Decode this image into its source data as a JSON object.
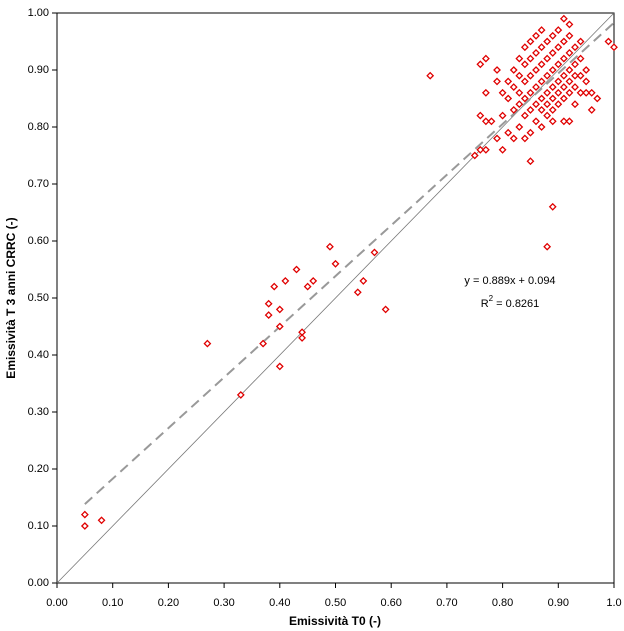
{
  "chart_data": {
    "type": "scatter",
    "x_label": "Emissività T0 (-)",
    "y_label": "Emissività T 3 anni CRRC (-)",
    "equation": "y = 0.889x + 0.094",
    "r_squared": {
      "prefix": "R",
      "sup": "2",
      "rest": " = 0.8261"
    },
    "xlim": [
      0,
      1
    ],
    "ylim": [
      0,
      1
    ],
    "xticks": [
      {
        "value": 0,
        "label": "0.00"
      },
      {
        "value": 0.1,
        "label": "0.10"
      },
      {
        "value": 0.2,
        "label": "0.20"
      },
      {
        "value": 0.3,
        "label": "0.30"
      },
      {
        "value": 0.4,
        "label": "0.40"
      },
      {
        "value": 0.5,
        "label": "0.50"
      },
      {
        "value": 0.6,
        "label": "0.60"
      },
      {
        "value": 0.7,
        "label": "0.70"
      },
      {
        "value": 0.8,
        "label": "0.80"
      },
      {
        "value": 0.9,
        "label": "0.90"
      },
      {
        "value": 1,
        "label": "1.0"
      }
    ],
    "yticks": [
      {
        "value": 0,
        "label": "0.00"
      },
      {
        "value": 0.1,
        "label": "0.10"
      },
      {
        "value": 0.2,
        "label": "0.20"
      },
      {
        "value": 0.3,
        "label": "0.30"
      },
      {
        "value": 0.4,
        "label": "0.40"
      },
      {
        "value": 0.5,
        "label": "0.50"
      },
      {
        "value": 0.6,
        "label": "0.60"
      },
      {
        "value": 0.7,
        "label": "0.70"
      },
      {
        "value": 0.8,
        "label": "0.80"
      },
      {
        "value": 0.9,
        "label": "0.90"
      },
      {
        "value": 1,
        "label": "1.00"
      }
    ],
    "color": "#e00000",
    "x": [
      0.05,
      0.05,
      0.08,
      0.27,
      0.33,
      0.37,
      0.38,
      0.38,
      0.39,
      0.4,
      0.4,
      0.4,
      0.41,
      0.43,
      0.44,
      0.44,
      0.45,
      0.46,
      0.49,
      0.5,
      0.54,
      0.55,
      0.57,
      0.59,
      0.67,
      0.75,
      0.76,
      0.77,
      0.76,
      0.77,
      0.78,
      0.76,
      0.77,
      0.77,
      0.79,
      0.79,
      0.79,
      0.8,
      0.85,
      0.89,
      0.88,
      0.91,
      0.92,
      0.96,
      0.97,
      0.99,
      1.0,
      0.91,
      0.92,
      0.95,
      0.94,
      0.81,
      0.81,
      0.82,
      0.82,
      0.82,
      0.83,
      0.83,
      0.83,
      0.83,
      0.84,
      0.84,
      0.84,
      0.84,
      0.85,
      0.85,
      0.85,
      0.85,
      0.85,
      0.86,
      0.86,
      0.86,
      0.86,
      0.86,
      0.87,
      0.87,
      0.87,
      0.87,
      0.87,
      0.87,
      0.88,
      0.88,
      0.88,
      0.88,
      0.88,
      0.88,
      0.89,
      0.89,
      0.89,
      0.89,
      0.89,
      0.89,
      0.89,
      0.9,
      0.9,
      0.9,
      0.9,
      0.9,
      0.9,
      0.91,
      0.91,
      0.91,
      0.91,
      0.91,
      0.92,
      0.92,
      0.92,
      0.92,
      0.92,
      0.93,
      0.93,
      0.93,
      0.93,
      0.93,
      0.94,
      0.94,
      0.94,
      0.95,
      0.95,
      0.96,
      0.8,
      0.8,
      0.81,
      0.82,
      0.84,
      0.85,
      0.86,
      0.87,
      0.83,
      0.84
    ],
    "y": [
      0.12,
      0.1,
      0.11,
      0.42,
      0.33,
      0.42,
      0.49,
      0.47,
      0.52,
      0.45,
      0.38,
      0.48,
      0.53,
      0.55,
      0.44,
      0.43,
      0.52,
      0.53,
      0.59,
      0.56,
      0.51,
      0.53,
      0.58,
      0.48,
      0.89,
      0.75,
      0.76,
      0.76,
      0.82,
      0.81,
      0.81,
      0.91,
      0.92,
      0.86,
      0.78,
      0.88,
      0.9,
      0.76,
      0.74,
      0.66,
      0.59,
      0.81,
      0.81,
      0.83,
      0.85,
      0.95,
      0.94,
      0.99,
      0.98,
      0.88,
      0.92,
      0.85,
      0.88,
      0.83,
      0.87,
      0.9,
      0.8,
      0.84,
      0.86,
      0.89,
      0.82,
      0.85,
      0.88,
      0.91,
      0.79,
      0.83,
      0.86,
      0.89,
      0.92,
      0.81,
      0.84,
      0.87,
      0.9,
      0.93,
      0.8,
      0.83,
      0.85,
      0.88,
      0.91,
      0.94,
      0.82,
      0.84,
      0.86,
      0.89,
      0.92,
      0.95,
      0.81,
      0.83,
      0.85,
      0.87,
      0.9,
      0.93,
      0.96,
      0.84,
      0.86,
      0.88,
      0.91,
      0.94,
      0.97,
      0.85,
      0.87,
      0.89,
      0.92,
      0.95,
      0.86,
      0.88,
      0.9,
      0.93,
      0.96,
      0.84,
      0.87,
      0.89,
      0.91,
      0.94,
      0.86,
      0.89,
      0.95,
      0.9,
      0.86,
      0.86,
      0.82,
      0.86,
      0.79,
      0.78,
      0.78,
      0.95,
      0.96,
      0.97,
      0.92,
      0.94
    ]
  }
}
